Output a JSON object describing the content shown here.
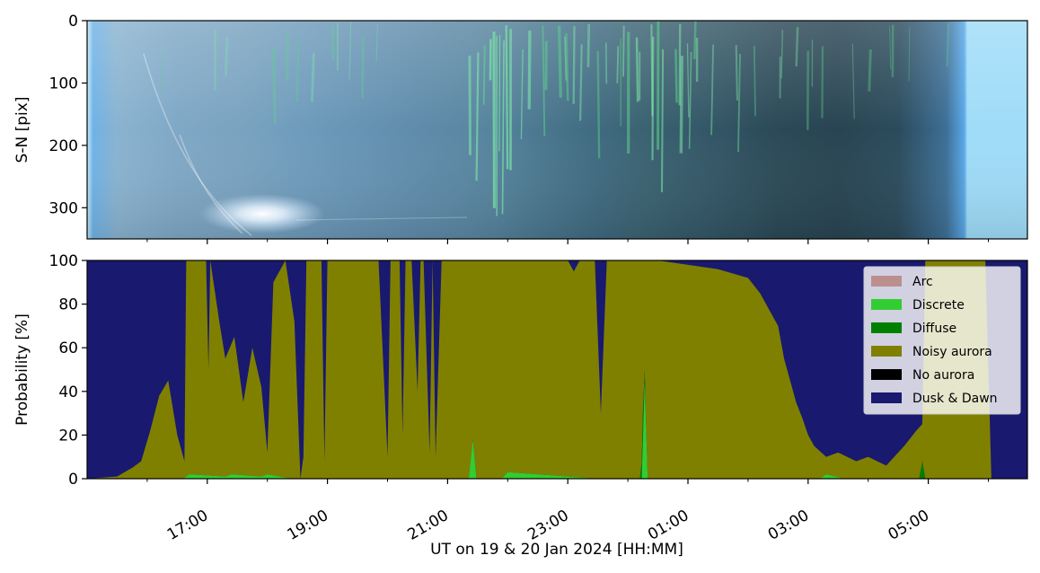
{
  "chart_data": [
    {
      "type": "image",
      "panel": "top",
      "ylabel": "S-N [pix]",
      "ylim": [
        350,
        0
      ],
      "yticks": [
        0,
        100,
        200,
        300
      ],
      "ytick_labels": [
        "0",
        "100",
        "200",
        "300"
      ],
      "keogram_columns": [
        {
          "t": 15.0,
          "color": "#c4ecfb",
          "aurora": 0
        },
        {
          "t": 15.1,
          "color": "#6fb2e6",
          "aurora": 0
        },
        {
          "t": 15.5,
          "color": "#8ab3d0",
          "aurora": 0
        },
        {
          "t": 16.5,
          "color": "#7fa8c6",
          "aurora": 0.1
        },
        {
          "t": 17.5,
          "color": "#7aa3c0",
          "aurora": 0.2
        },
        {
          "t": 18.5,
          "color": "#6f9cbc",
          "aurora": 0.3
        },
        {
          "t": 19.5,
          "color": "#6794b4",
          "aurora": 0.2
        },
        {
          "t": 20.5,
          "color": "#5f8cab",
          "aurora": 0.1
        },
        {
          "t": 21.3,
          "color": "#5a87a3",
          "aurora": 0.6
        },
        {
          "t": 21.8,
          "color": "#55839c",
          "aurora": 0.9
        },
        {
          "t": 22.5,
          "color": "#4b7890",
          "aurora": 0.6
        },
        {
          "t": 23.5,
          "color": "#3f6a80",
          "aurora": 0.4
        },
        {
          "t": 24.3,
          "color": "#3a6271",
          "aurora": 0.7
        },
        {
          "t": 25.5,
          "color": "#325565",
          "aurora": 0.4
        },
        {
          "t": 26.5,
          "color": "#2b4957",
          "aurora": 0.3
        },
        {
          "t": 27.5,
          "color": "#284452",
          "aurora": 0.2
        },
        {
          "t": 28.5,
          "color": "#2b4b5c",
          "aurora": 0.3
        },
        {
          "t": 29.3,
          "color": "#3d6f96",
          "aurora": 0.1
        },
        {
          "t": 29.6,
          "color": "#58a8e8",
          "aurora": 0
        },
        {
          "t": 29.65,
          "color": "#9fdcf8",
          "aurora": 0
        }
      ]
    },
    {
      "type": "area",
      "panel": "bottom",
      "stacked": true,
      "xlabel": "UT on 19 & 20 Jan 2024 [HH:MM]",
      "ylabel": "Probability [%]",
      "xlim": [
        15.0,
        30.65
      ],
      "ylim": [
        0,
        100
      ],
      "yticks": [
        0,
        20,
        40,
        60,
        80,
        100
      ],
      "ytick_labels": [
        "0",
        "20",
        "40",
        "60",
        "80",
        "100"
      ],
      "xtick_values": [
        17,
        19,
        21,
        23,
        25,
        27,
        29
      ],
      "xtick_labels": [
        "17:00",
        "19:00",
        "21:00",
        "23:00",
        "01:00",
        "03:00",
        "05:00"
      ],
      "minor_xtick_values": [
        16,
        18,
        20,
        22,
        24,
        26,
        28,
        30
      ],
      "legend_position": "upper right",
      "series": [
        {
          "name": "Arc",
          "color": "#bc8f8f"
        },
        {
          "name": "Discrete",
          "color": "#32cd32",
          "x": [
            15.0,
            16.6,
            16.7,
            17.3,
            17.4,
            17.9,
            18.0,
            18.4,
            21.35,
            21.42,
            21.48,
            21.9,
            22.0,
            23.5,
            24.23,
            24.28,
            24.33,
            27.2,
            27.3,
            27.6,
            29.0,
            29.1,
            30.65
          ],
          "values": [
            0,
            0,
            2,
            1,
            2,
            1,
            2,
            0,
            0,
            18,
            0,
            0,
            3,
            0,
            0,
            45,
            0,
            0,
            2,
            0,
            0,
            0,
            0
          ]
        },
        {
          "name": "Diffuse",
          "color": "#008000",
          "x": [
            15.0,
            24.2,
            24.25,
            24.3,
            28.85,
            28.9,
            28.95,
            30.65
          ],
          "values": [
            0,
            0,
            12,
            0,
            0,
            8,
            0,
            0
          ]
        },
        {
          "name": "Noisy aurora",
          "color": "#808000",
          "x": [
            15.0,
            15.5,
            15.75,
            15.9,
            16.05,
            16.2,
            16.35,
            16.5,
            16.62,
            16.65,
            16.7,
            16.98,
            17.02,
            17.05,
            17.2,
            17.3,
            17.45,
            17.6,
            17.75,
            17.9,
            18.0,
            18.1,
            18.3,
            18.45,
            18.55,
            18.6,
            18.65,
            18.9,
            18.95,
            19.0,
            19.3,
            19.4,
            19.6,
            19.85,
            19.95,
            20.0,
            20.05,
            20.2,
            20.25,
            20.3,
            20.4,
            20.5,
            20.55,
            20.6,
            20.7,
            20.75,
            20.8,
            20.9,
            20.95,
            21.0,
            21.3,
            21.35,
            21.5,
            21.7,
            21.9,
            22.0,
            22.3,
            22.5,
            22.8,
            23.0,
            23.1,
            23.2,
            23.45,
            23.55,
            23.65,
            23.7,
            23.9,
            24.1,
            24.5,
            25.0,
            25.5,
            26.0,
            26.2,
            26.4,
            26.5,
            26.6,
            26.8,
            26.9,
            27.0,
            27.1,
            27.3,
            27.5,
            27.8,
            28.0,
            28.3,
            28.6,
            28.8,
            28.9,
            28.95,
            29.0,
            29.2,
            29.6,
            29.8,
            29.95,
            30.05,
            30.65
          ],
          "values": [
            0,
            1,
            5,
            8,
            22,
            38,
            45,
            20,
            8,
            100,
            100,
            100,
            50,
            100,
            72,
            55,
            65,
            35,
            60,
            42,
            12,
            90,
            100,
            72,
            0,
            10,
            100,
            100,
            8,
            100,
            100,
            100,
            100,
            100,
            40,
            10,
            100,
            100,
            20,
            100,
            100,
            40,
            100,
            100,
            12,
            100,
            10,
            100,
            100,
            100,
            100,
            100,
            100,
            100,
            100,
            100,
            100,
            100,
            100,
            100,
            95,
            100,
            100,
            30,
            100,
            100,
            100,
            100,
            100,
            98,
            96,
            92,
            85,
            75,
            70,
            55,
            35,
            28,
            20,
            15,
            10,
            12,
            8,
            10,
            6,
            15,
            22,
            25,
            100,
            100,
            100,
            100,
            100,
            100,
            0,
            0
          ]
        },
        {
          "name": "No aurora",
          "color": "#000000"
        },
        {
          "name": "Dusk & Dawn",
          "color": "#191970"
        }
      ]
    }
  ]
}
